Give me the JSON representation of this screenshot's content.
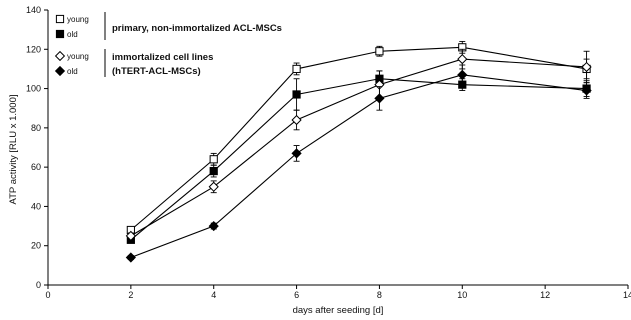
{
  "chart_data": {
    "type": "line",
    "xlabel": "days after seeding [d]",
    "ylabel": "ATP activity [RLU x 1.000]",
    "xlim": [
      0,
      14
    ],
    "ylim": [
      0,
      140
    ],
    "x_ticks": [
      "0",
      "2",
      "4",
      "6",
      "8",
      "10",
      "12",
      "14"
    ],
    "y_ticks": [
      "0",
      "20",
      "40",
      "60",
      "80",
      "100",
      "120",
      "140"
    ],
    "legend_placement": "top-left",
    "groups": [
      {
        "label": "primary, non-immortalized ACL-MSCs",
        "series_indices": [
          0,
          1
        ]
      },
      {
        "label": "immortalized cell lines",
        "label2": "(hTERT-ACL-MSCs)",
        "series_indices": [
          2,
          3
        ]
      }
    ],
    "series": [
      {
        "name": "young",
        "marker": "open-square",
        "x": [
          2,
          4,
          6,
          8,
          10,
          13
        ],
        "y": [
          28,
          64,
          110,
          119,
          121,
          110
        ],
        "err": [
          1.5,
          3,
          3,
          2.5,
          3,
          5
        ]
      },
      {
        "name": "old",
        "marker": "filled-square",
        "x": [
          2,
          4,
          6,
          8,
          10,
          13
        ],
        "y": [
          23,
          58,
          97,
          105,
          102,
          100
        ],
        "err": [
          1.5,
          3,
          8,
          4,
          3,
          4
        ]
      },
      {
        "name": "young",
        "marker": "open-diamond",
        "x": [
          2,
          4,
          6,
          8,
          10,
          13
        ],
        "y": [
          25,
          50,
          84,
          102,
          115,
          111
        ],
        "err": [
          1.5,
          3,
          5,
          7,
          5,
          8
        ]
      },
      {
        "name": "old",
        "marker": "filled-diamond",
        "x": [
          2,
          4,
          6,
          8,
          10,
          13
        ],
        "y": [
          14,
          30,
          67,
          95,
          107,
          99
        ],
        "err": [
          1,
          1.5,
          4,
          6,
          5,
          4
        ]
      }
    ]
  }
}
